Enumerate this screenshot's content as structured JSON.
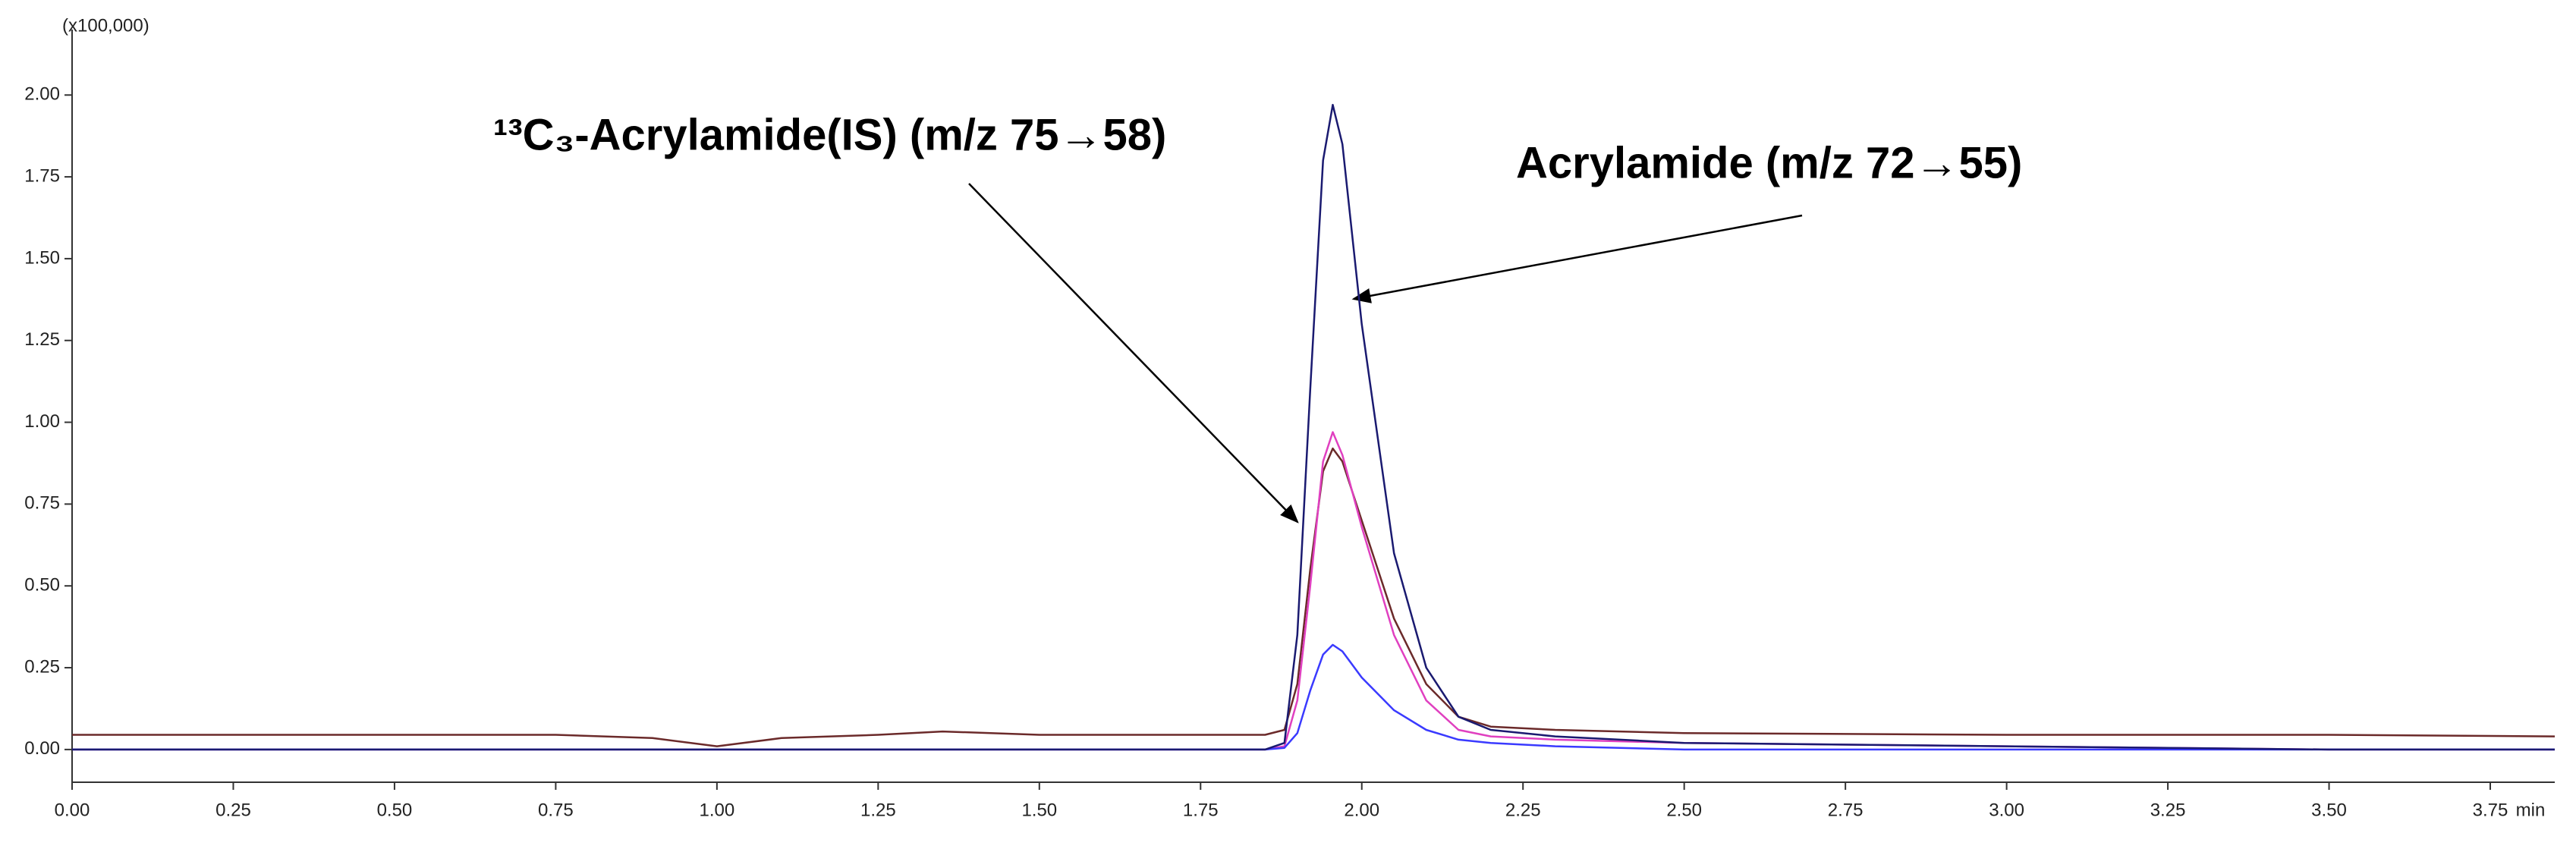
{
  "chart_data": {
    "type": "line",
    "y_unit_label": "(x100,000)",
    "x_unit_label": "min",
    "annotations": [
      "¹³C₃-Acrylamide(IS) (m/z 75→58)",
      "Acrylamide (m/z 72→55)"
    ],
    "x": [
      0,
      0.25,
      0.5,
      0.75,
      0.9,
      1.0,
      1.1,
      1.25,
      1.35,
      1.5,
      1.75,
      1.85,
      1.88,
      1.9,
      1.92,
      1.94,
      1.955,
      1.97,
      2.0,
      2.05,
      2.1,
      2.15,
      2.2,
      2.3,
      2.5,
      3.0,
      3.5,
      3.85
    ],
    "series": [
      {
        "color": "#6b2a2a",
        "values": [
          0.045,
          0.045,
          0.045,
          0.045,
          0.035,
          0.01,
          0.035,
          0.045,
          0.055,
          0.045,
          0.045,
          0.045,
          0.06,
          0.2,
          0.55,
          0.85,
          0.92,
          0.88,
          0.7,
          0.4,
          0.2,
          0.1,
          0.07,
          0.06,
          0.05,
          0.045,
          0.045,
          0.04
        ]
      },
      {
        "color": "#e040c0",
        "values": [
          0,
          0,
          0,
          0,
          0,
          0,
          0,
          0,
          0,
          0,
          0,
          0,
          0.01,
          0.15,
          0.5,
          0.88,
          0.97,
          0.9,
          0.68,
          0.35,
          0.15,
          0.06,
          0.04,
          0.03,
          0.02,
          0.01,
          0,
          0
        ]
      },
      {
        "color": "#3a3aff",
        "values": [
          0,
          0,
          0,
          0,
          0,
          0,
          0,
          0,
          0,
          0,
          0,
          0,
          0.005,
          0.05,
          0.18,
          0.29,
          0.32,
          0.3,
          0.22,
          0.12,
          0.06,
          0.03,
          0.02,
          0.01,
          0,
          0,
          0,
          0
        ]
      },
      {
        "color": "#1a1a70",
        "values": [
          0,
          0,
          0,
          0,
          0,
          0,
          0,
          0,
          0,
          0,
          0,
          0,
          0.02,
          0.35,
          1.1,
          1.8,
          1.97,
          1.85,
          1.3,
          0.6,
          0.25,
          0.1,
          0.06,
          0.04,
          0.02,
          0.01,
          0,
          0
        ]
      }
    ],
    "xlim": [
      0,
      3.85
    ],
    "ylim": [
      -0.1,
      2.2
    ],
    "xticks": [
      {
        "value": 0,
        "label": "0.00"
      },
      {
        "value": 0.25,
        "label": "0.25"
      },
      {
        "value": 0.5,
        "label": "0.50"
      },
      {
        "value": 0.75,
        "label": "0.75"
      },
      {
        "value": 1,
        "label": "1.00"
      },
      {
        "value": 1.25,
        "label": "1.25"
      },
      {
        "value": 1.5,
        "label": "1.50"
      },
      {
        "value": 1.75,
        "label": "1.75"
      },
      {
        "value": 2,
        "label": "2.00"
      },
      {
        "value": 2.25,
        "label": "2.25"
      },
      {
        "value": 2.5,
        "label": "2.50"
      },
      {
        "value": 2.75,
        "label": "2.75"
      },
      {
        "value": 3,
        "label": "3.00"
      },
      {
        "value": 3.25,
        "label": "3.25"
      },
      {
        "value": 3.5,
        "label": "3.50"
      },
      {
        "value": 3.75,
        "label": "3.75"
      }
    ],
    "yticks": [
      {
        "value": 0,
        "label": "0.00"
      },
      {
        "value": 0.25,
        "label": "0.25"
      },
      {
        "value": 0.5,
        "label": "0.50"
      },
      {
        "value": 0.75,
        "label": "0.75"
      },
      {
        "value": 1,
        "label": "1.00"
      },
      {
        "value": 1.25,
        "label": "1.25"
      },
      {
        "value": 1.5,
        "label": "1.50"
      },
      {
        "value": 1.75,
        "label": "1.75"
      },
      {
        "value": 2,
        "label": "2.00"
      }
    ],
    "grid": false
  }
}
